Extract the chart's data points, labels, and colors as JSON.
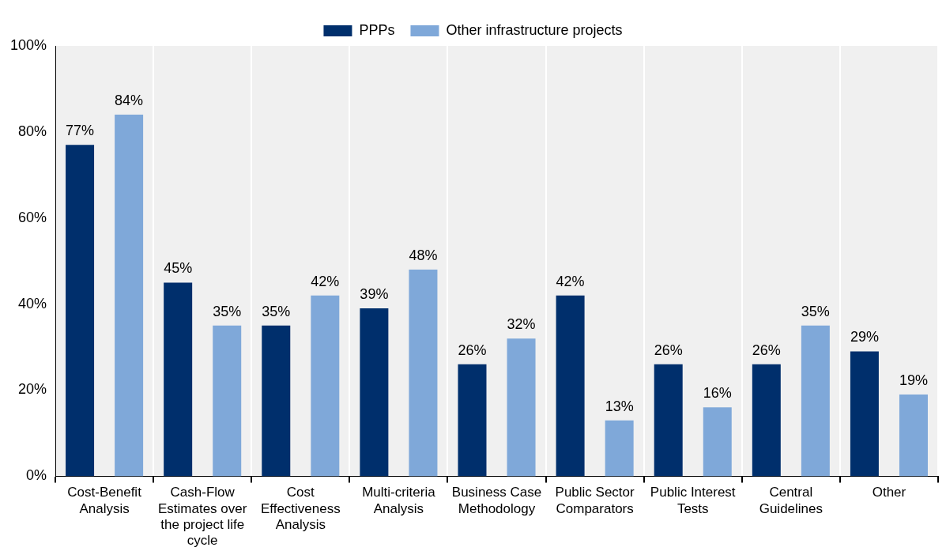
{
  "chart_data": {
    "type": "bar",
    "categories": [
      "Cost-Benefit Analysis",
      "Cash-Flow Estimates over the project life cycle",
      "Cost Effectiveness Analysis",
      "Multi-criteria Analysis",
      "Business Case Methodology",
      "Public Sector Comparators",
      "Public Interest Tests",
      "Central Guidelines",
      "Other"
    ],
    "series": [
      {
        "name": "PPPs",
        "color": "#002f6c",
        "values": [
          77,
          45,
          35,
          39,
          26,
          42,
          26,
          26,
          29
        ],
        "value_labels": [
          "77%",
          "45%",
          "35%",
          "39%",
          "26%",
          "42%",
          "26%",
          "26%",
          "29%"
        ]
      },
      {
        "name": "Other infrastructure projects",
        "color": "#7fa8d9",
        "values": [
          84,
          35,
          42,
          48,
          32,
          13,
          16,
          35,
          19
        ],
        "value_labels": [
          "84%",
          "35%",
          "42%",
          "48%",
          "32%",
          "13%",
          "16%",
          "35%",
          "19%"
        ]
      }
    ],
    "ylim": [
      0,
      100
    ],
    "yticks": [
      {
        "value": 0,
        "label": "0%"
      },
      {
        "value": 20,
        "label": "20%"
      },
      {
        "value": 40,
        "label": "40%"
      },
      {
        "value": 60,
        "label": "60%"
      },
      {
        "value": 80,
        "label": "80%"
      },
      {
        "value": 100,
        "label": "100%"
      }
    ],
    "grid": "x",
    "legend": "top"
  }
}
